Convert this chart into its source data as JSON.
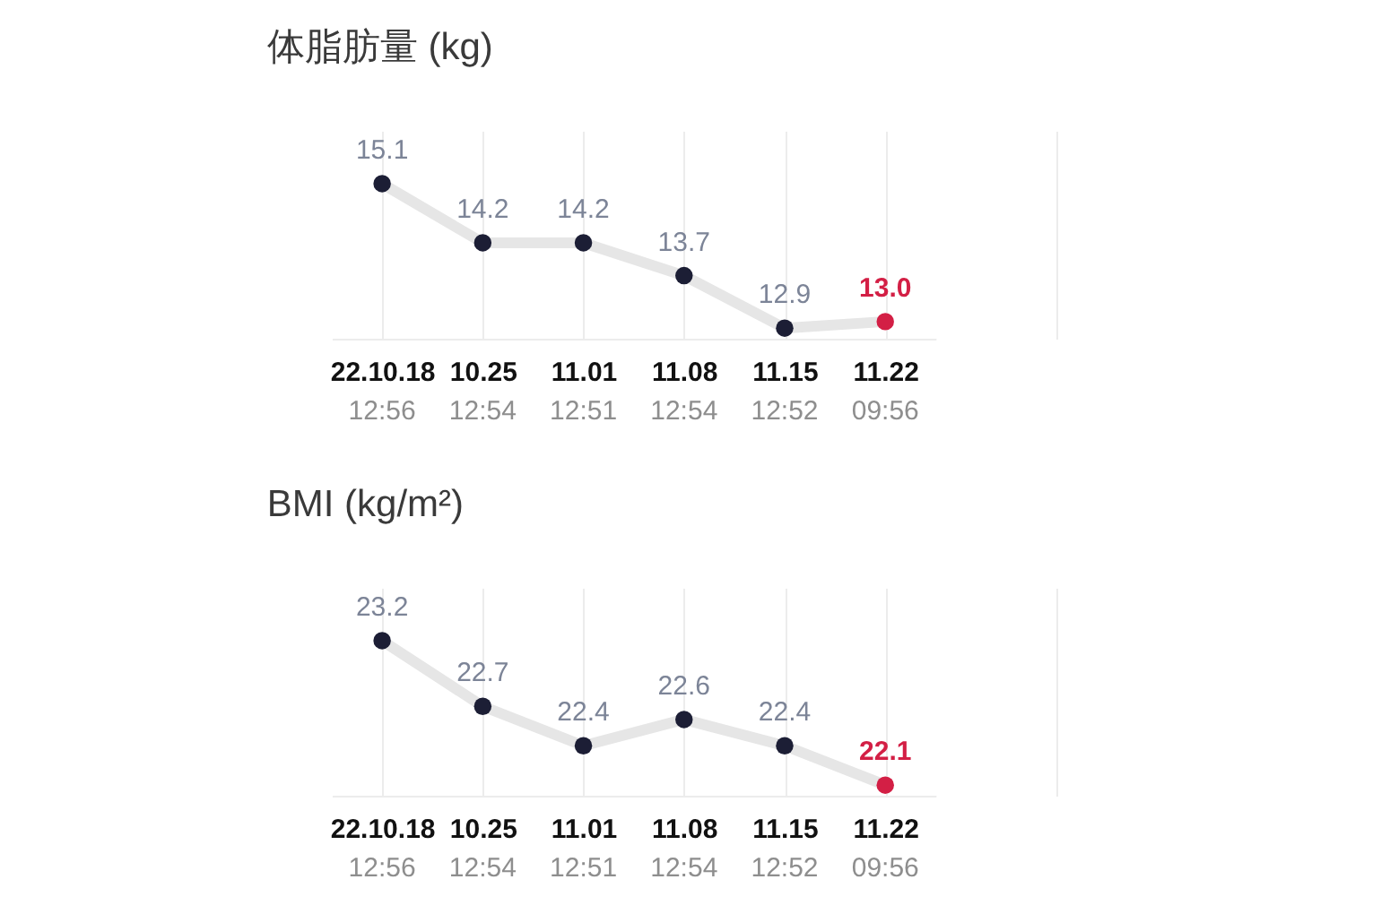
{
  "chart_data": [
    {
      "type": "line",
      "title": "体脂肪量 (kg)",
      "categories": [
        "22.10.18\n12:56",
        "10.25\n12:54",
        "11.01\n12:51",
        "11.08\n12:54",
        "11.15\n12:52",
        "11.22\n09:56"
      ],
      "series": [
        {
          "color": "#e6e6e6",
          "colors": [
            "#1c1e35",
            "#1c1e35",
            "#1c1e35",
            "#1c1e35",
            "#1c1e35",
            "#d31f45"
          ],
          "values": [
            15.1,
            14.2,
            14.2,
            13.7,
            12.9,
            13.0
          ],
          "value_labels": [
            "15.1",
            "14.2",
            "14.2",
            "13.7",
            "12.9",
            "13.0"
          ]
        }
      ],
      "grid": "x",
      "marker": "circle"
    },
    {
      "type": "line",
      "title": "BMI (kg/m²)",
      "categories": [
        "22.10.18\n12:56",
        "10.25\n12:54",
        "11.01\n12:51",
        "11.08\n12:54",
        "11.15\n12:52",
        "11.22\n09:56"
      ],
      "series": [
        {
          "color": "#e6e6e6",
          "colors": [
            "#1c1e35",
            "#1c1e35",
            "#1c1e35",
            "#1c1e35",
            "#1c1e35",
            "#d31f45"
          ],
          "values": [
            23.2,
            22.7,
            22.4,
            22.6,
            22.4,
            22.1
          ],
          "value_labels": [
            "23.2",
            "22.7",
            "22.4",
            "22.6",
            "22.4",
            "22.1"
          ]
        }
      ],
      "grid": "x",
      "marker": "circle"
    }
  ]
}
